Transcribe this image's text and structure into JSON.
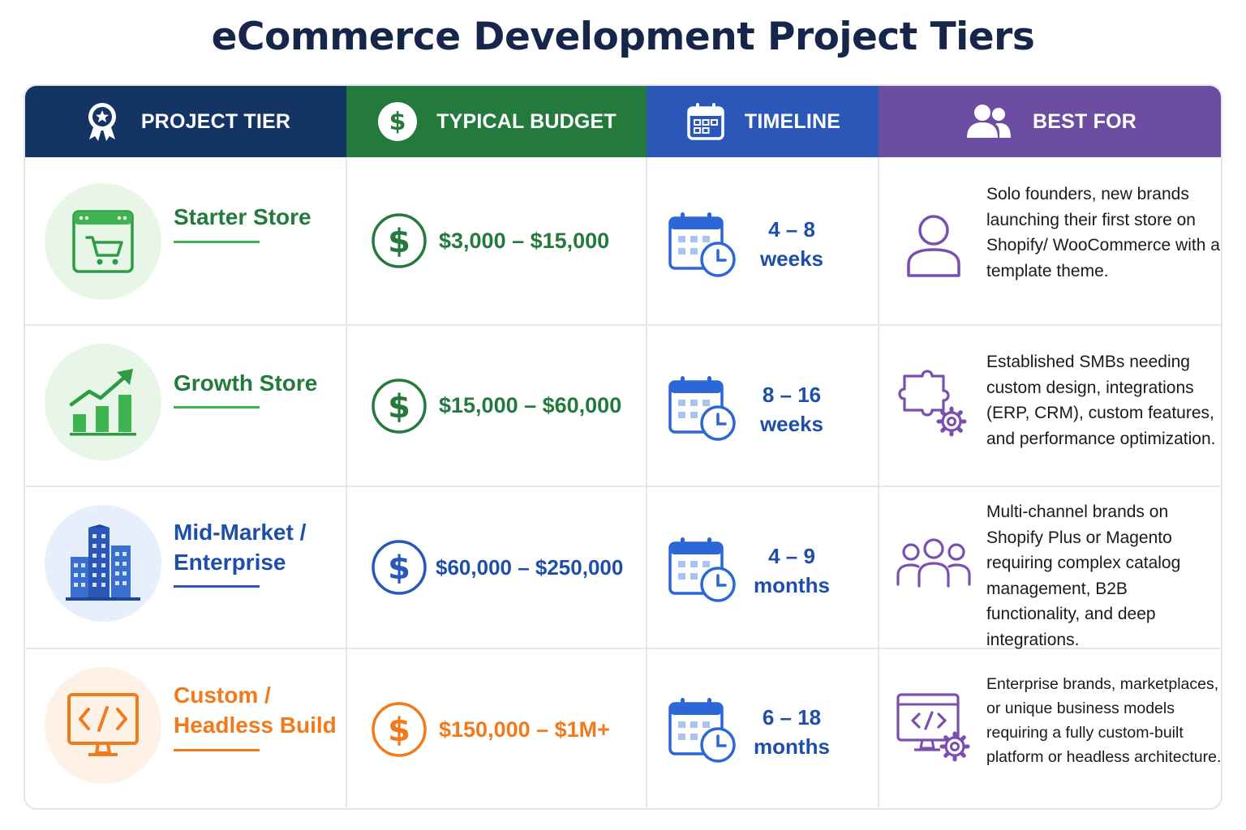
{
  "title": "eCommerce Development Project Tiers",
  "colors": {
    "navy": "#143463",
    "green": "#237a3c",
    "blue": "#2b58b8",
    "purple": "#6d4da2",
    "orange": "#f07a1c"
  },
  "headers": [
    {
      "label": "PROJECT TIER",
      "icon": "award-badge-icon"
    },
    {
      "label": "TYPICAL BUDGET",
      "icon": "dollar-circle-icon"
    },
    {
      "label": "TIMELINE",
      "icon": "calendar-icon"
    },
    {
      "label": "BEST FOR",
      "icon": "users-icon"
    }
  ],
  "tiers": [
    {
      "name": "Starter Store",
      "icon": "shopping-cart-browser-icon",
      "budget": "$3,000 – $15,000",
      "timeline_line1": "4 – 8",
      "timeline_line2": "weeks",
      "best_for_icon": "person-icon",
      "best_for": "Solo founders, new brands launching their first store on Shopify/ WooCommerce with a template theme."
    },
    {
      "name": "Growth Store",
      "icon": "growth-chart-icon",
      "budget": "$15,000 – $60,000",
      "timeline_line1": "8 – 16",
      "timeline_line2": "weeks",
      "best_for_icon": "puzzle-gear-icon",
      "best_for": "Established SMBs needing custom design, integrations (ERP, CRM), custom features, and performance optimization."
    },
    {
      "name_line1": "Mid-Market /",
      "name_line2": "Enterprise",
      "icon": "buildings-icon",
      "budget": "$60,000 – $250,000",
      "timeline_line1": "4 – 9",
      "timeline_line2": "months",
      "best_for_icon": "group-icon",
      "best_for": "Multi-channel brands on Shopify Plus or Magento requiring complex catalog management, B2B functionality, and deep integrations."
    },
    {
      "name_line1": "Custom /",
      "name_line2": "Headless Build",
      "icon": "code-monitor-icon",
      "budget": "$150,000 – $1M+",
      "timeline_line1": "6 – 18",
      "timeline_line2": "months",
      "best_for_icon": "monitor-gear-icon",
      "best_for": "Enterprise brands, marketplaces, or unique business models requiring a fully custom-built platform or headless architecture."
    }
  ]
}
